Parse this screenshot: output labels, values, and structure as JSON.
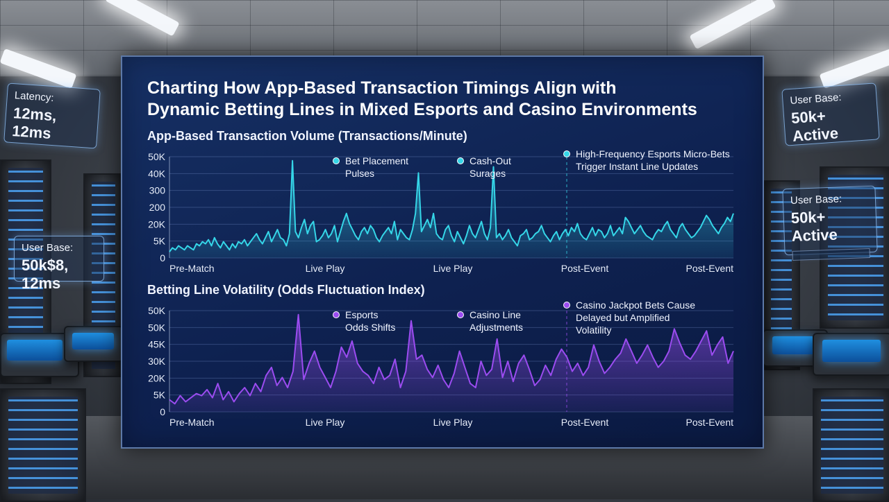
{
  "title_line1": "Charting How App-Based Transaction Timings Align with",
  "title_line2": "Dynamic Betting Lines in Mixed Esports and Casino Environments",
  "cards": {
    "latency": {
      "label": "Latency:",
      "value": "12ms, 12ms"
    },
    "user_base_left": {
      "label": "User Base:",
      "value": "50k$8, 12ms"
    },
    "user_base_right_top": {
      "label": "User Base:",
      "value": "50k+ Active"
    },
    "user_base_right_mid": {
      "label": "User Base:",
      "value": "50k+ Active"
    }
  },
  "colors": {
    "transaction": "#35d6e8",
    "volatility": "#9b4cf0",
    "panel": "#0e2150"
  },
  "chart_data": [
    {
      "type": "area",
      "title": "App-Based Transaction Volume (Transactions/Minute)",
      "y_tick_labels": [
        "50K",
        "40K",
        "300",
        "200",
        "20K",
        "5K",
        "0"
      ],
      "x_tick_labels": [
        "Pre-Match",
        "Live Play",
        "Live Play",
        "Post-Event",
        "Post-Event"
      ],
      "grid": true,
      "series": [
        {
          "color": "#35d6e8",
          "values": [
            3,
            5,
            4,
            6,
            5,
            4,
            6,
            5,
            4,
            7,
            6,
            8,
            7,
            9,
            6,
            10,
            7,
            5,
            8,
            6,
            4,
            7,
            5,
            8,
            7,
            9,
            6,
            8,
            10,
            12,
            9,
            7,
            10,
            13,
            8,
            11,
            14,
            10,
            9,
            6,
            12,
            48,
            13,
            10,
            15,
            19,
            12,
            16,
            18,
            8,
            9,
            11,
            14,
            10,
            12,
            16,
            8,
            13,
            18,
            22,
            17,
            14,
            11,
            9,
            13,
            15,
            12,
            16,
            14,
            10,
            8,
            11,
            13,
            15,
            12,
            18,
            9,
            14,
            12,
            10,
            9,
            14,
            22,
            42,
            13,
            16,
            19,
            15,
            22,
            12,
            10,
            9,
            14,
            16,
            11,
            8,
            13,
            10,
            7,
            11,
            16,
            12,
            10,
            14,
            18,
            12,
            9,
            15,
            45,
            10,
            12,
            9,
            11,
            14,
            10,
            8,
            6,
            11,
            12,
            14,
            9,
            10,
            12,
            13,
            16,
            12,
            10,
            8,
            11,
            13,
            9,
            12,
            14,
            11,
            15,
            13,
            17,
            12,
            10,
            9,
            12,
            15,
            11,
            14,
            13,
            10,
            12,
            16,
            11,
            13,
            15,
            12,
            20,
            18,
            15,
            12,
            14,
            16,
            13,
            11,
            10,
            9,
            12,
            14,
            13,
            16,
            18,
            14,
            12,
            10,
            15,
            17,
            14,
            12,
            10,
            11,
            13,
            15,
            18,
            21,
            19,
            16,
            14,
            12,
            15,
            17,
            20,
            18,
            22
          ]
        }
      ],
      "annotations": [
        {
          "text_line1": "Bet Placement",
          "text_line2": "Pulses"
        },
        {
          "text_line1": "Cash-Out",
          "text_line2": "Surages"
        },
        {
          "text_line1": "High-Frequency Esports Micro-Bets",
          "text_line2": "Trigger Instant Line Updates"
        }
      ]
    },
    {
      "type": "area",
      "title": "Betting Line Volatility (Odds Fluctuation Index)",
      "y_tick_labels": [
        "50K",
        "50K",
        "45K",
        "30K",
        "20K",
        "5K",
        "0"
      ],
      "x_tick_labels": [
        "Pre-Match",
        "Live Play",
        "Live Play",
        "Post-Event",
        "Post-Event"
      ],
      "grid": true,
      "series": [
        {
          "color": "#9b4cf0",
          "values": [
            6,
            4,
            8,
            5,
            7,
            9,
            8,
            11,
            7,
            14,
            6,
            10,
            5,
            9,
            12,
            8,
            14,
            10,
            18,
            22,
            13,
            17,
            12,
            20,
            48,
            16,
            24,
            30,
            22,
            17,
            12,
            20,
            32,
            27,
            35,
            24,
            20,
            18,
            14,
            22,
            16,
            18,
            26,
            12,
            20,
            45,
            26,
            28,
            21,
            17,
            23,
            16,
            12,
            19,
            30,
            22,
            14,
            12,
            25,
            18,
            21,
            36,
            17,
            25,
            15,
            24,
            28,
            21,
            13,
            16,
            23,
            18,
            26,
            31,
            27,
            20,
            24,
            18,
            22,
            33,
            25,
            19,
            22,
            26,
            29,
            36,
            30,
            24,
            28,
            33,
            27,
            22,
            25,
            30,
            41,
            34,
            28,
            26,
            30,
            35,
            40,
            28,
            33,
            37,
            24,
            30
          ]
        }
      ],
      "annotations": [
        {
          "text_line1": "Esports",
          "text_line2": "Odds Shifts"
        },
        {
          "text_line1": "Casino Line",
          "text_line2": "Adjustments"
        },
        {
          "text_line1": "Casino Jackpot Bets Cause",
          "text_line2": "Delayed but Amplified",
          "text_line3": "Volatility"
        }
      ]
    }
  ]
}
